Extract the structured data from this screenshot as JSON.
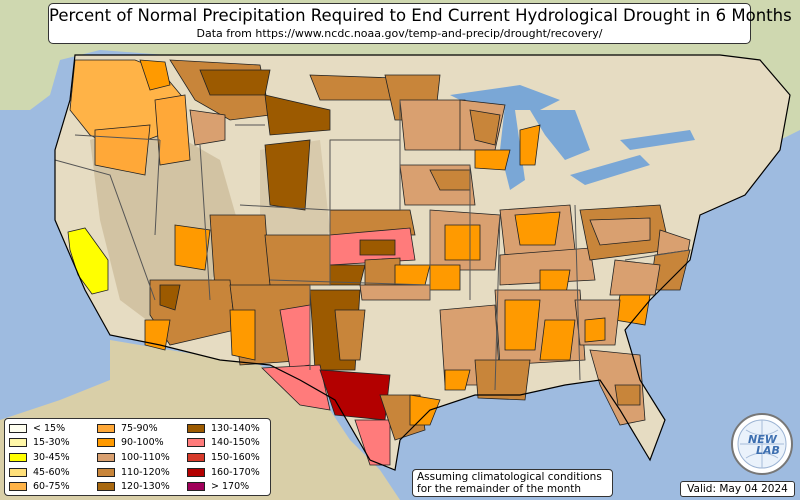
{
  "title": "Percent of Normal Precipitation Required to End Current Hydrological Drought in 6 Months",
  "subtitle": "Data from https://www.ncdc.noaa.gov/temp-and-precip/drought/recovery/",
  "legend": [
    {
      "label": "< 15%",
      "color": "#fffff0"
    },
    {
      "label": "15-30%",
      "color": "#fff7a8"
    },
    {
      "label": "30-45%",
      "color": "#ffff00"
    },
    {
      "label": "45-60%",
      "color": "#ffe07a"
    },
    {
      "label": "60-75%",
      "color": "#ffb347"
    },
    {
      "label": "75-90%",
      "color": "#ffa838"
    },
    {
      "label": "90-100%",
      "color": "#ff9a00"
    },
    {
      "label": "100-110%",
      "color": "#d9a070"
    },
    {
      "label": "110-120%",
      "color": "#c8853a"
    },
    {
      "label": "120-130%",
      "color": "#a8680f"
    },
    {
      "label": "130-140%",
      "color": "#9c5a00"
    },
    {
      "label": "140-150%",
      "color": "#ff7b7b"
    },
    {
      "label": "150-160%",
      "color": "#d63a2a"
    },
    {
      "label": "160-170%",
      "color": "#b30000"
    },
    {
      "label": "> 170%",
      "color": "#a0005a"
    }
  ],
  "note": {
    "line1": "Assuming climatological conditions",
    "line2": "for the remainder of the month"
  },
  "valid": "Valid: May 04 2024",
  "logo": {
    "text_top": "NEW",
    "text_bottom": "LAB",
    "icon": "globe-logo-icon"
  },
  "colors": {
    "ocean": "#9ebbe0",
    "land_us": "#e8e0c8",
    "land_other": "#cfd8b0",
    "mountains": "#b9aa88",
    "water_lakes": "#7aa7d6",
    "state_border": "#555555",
    "county_border": "#222222"
  }
}
